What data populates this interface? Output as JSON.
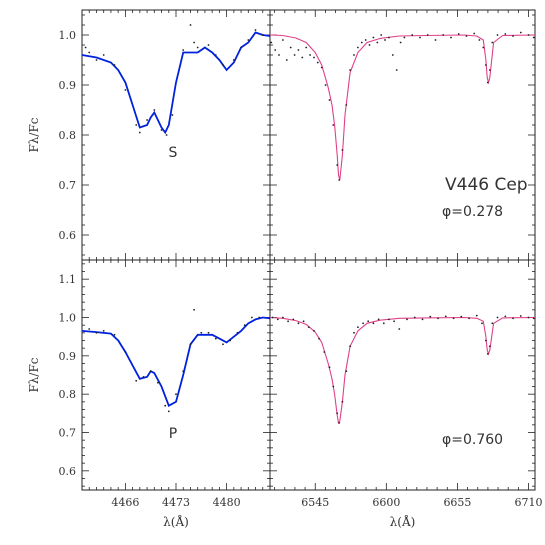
{
  "chart_data": [
    {
      "id": "top-left",
      "type": "line",
      "xlim": [
        4460,
        4486
      ],
      "ylim": [
        0.55,
        1.05
      ],
      "yticks": [
        0.6,
        0.7,
        0.8,
        0.9,
        1.0
      ],
      "xticks": [
        4466,
        4473,
        4480
      ],
      "ylabel": "Fλ/Fc",
      "annotation": "S",
      "series": [
        {
          "style": "line",
          "color": "#0022dd",
          "x": [
            4460,
            4462,
            4464,
            4465,
            4466,
            4467,
            4468,
            4469,
            4469.5,
            4470,
            4471,
            4471.5,
            4472,
            4473,
            4474,
            4476,
            4477,
            4478,
            4479,
            4480,
            4481,
            4482,
            4483,
            4484,
            4485,
            4486
          ],
          "y": [
            0.96,
            0.955,
            0.945,
            0.93,
            0.905,
            0.86,
            0.815,
            0.82,
            0.835,
            0.845,
            0.815,
            0.805,
            0.82,
            0.905,
            0.965,
            0.965,
            0.975,
            0.965,
            0.95,
            0.93,
            0.945,
            0.975,
            0.985,
            1.005,
            1.0,
            0.998
          ]
        },
        {
          "style": "points",
          "color": "#222222",
          "x": [
            4460.5,
            4461,
            4462,
            4463,
            4464.5,
            4466,
            4467.5,
            4468,
            4469,
            4470,
            4471,
            4471.7,
            4472.5,
            4474,
            4475,
            4475.5,
            4476,
            4477.5,
            4478.5,
            4479.5,
            4481,
            4482,
            4483,
            4484,
            4485
          ],
          "y": [
            0.975,
            0.965,
            0.95,
            0.96,
            0.94,
            0.89,
            0.82,
            0.805,
            0.83,
            0.85,
            0.81,
            0.8,
            0.84,
            0.97,
            1.02,
            0.985,
            0.975,
            0.98,
            0.96,
            0.94,
            0.95,
            0.975,
            0.99,
            1.01,
            1.0
          ]
        }
      ]
    },
    {
      "id": "top-right",
      "type": "line",
      "xlim": [
        6510,
        6715
      ],
      "ylim": [
        0.55,
        1.05
      ],
      "xticks": [
        6545,
        6600,
        6655,
        6710
      ],
      "annotation": "V446 Cep",
      "phase": "φ=0.278",
      "series": [
        {
          "style": "line",
          "color": "#e0408a",
          "x": [
            6510,
            6520,
            6530,
            6538,
            6545,
            6550,
            6555,
            6558,
            6560,
            6562,
            6563,
            6564,
            6566,
            6568,
            6572,
            6578,
            6585,
            6595,
            6610,
            6630,
            6660,
            6670,
            6675,
            6677,
            6678,
            6679,
            6680,
            6683,
            6690,
            6715
          ],
          "y": [
            1.0,
            0.999,
            0.994,
            0.985,
            0.965,
            0.94,
            0.895,
            0.86,
            0.82,
            0.76,
            0.72,
            0.71,
            0.76,
            0.84,
            0.925,
            0.965,
            0.985,
            0.993,
            0.998,
            0.999,
            1.0,
            0.998,
            0.99,
            0.95,
            0.915,
            0.905,
            0.915,
            0.985,
            0.999,
            1.0
          ]
        },
        {
          "style": "points",
          "color": "#222222",
          "x": [
            6511,
            6514,
            6517,
            6520,
            6523,
            6526,
            6529,
            6532,
            6535,
            6538,
            6541,
            6544,
            6547,
            6550,
            6553,
            6556,
            6559,
            6562,
            6563.5,
            6566,
            6569,
            6572,
            6575,
            6578,
            6581,
            6584,
            6587,
            6590,
            6593,
            6596,
            6599,
            6602,
            6605,
            6608,
            6611,
            6614,
            6620,
            6626,
            6632,
            6638,
            6644,
            6650,
            6656,
            6662,
            6668,
            6672,
            6675,
            6677,
            6678.5,
            6680,
            6682,
            6686,
            6692,
            6698,
            6704,
            6710,
            6714
          ],
          "y": [
            0.985,
            0.97,
            0.96,
            0.99,
            0.95,
            0.975,
            0.96,
            0.97,
            0.955,
            0.975,
            0.96,
            0.955,
            0.945,
            0.935,
            0.9,
            0.87,
            0.82,
            0.74,
            0.71,
            0.77,
            0.86,
            0.93,
            0.96,
            0.975,
            0.985,
            0.99,
            0.98,
            0.995,
            0.985,
            1.0,
            0.99,
            0.995,
            0.96,
            0.93,
            0.985,
            0.995,
            1.0,
            0.995,
            1.0,
            0.99,
            1.0,
            0.995,
            1.002,
            0.998,
            1.003,
            0.99,
            0.975,
            0.94,
            0.905,
            0.93,
            0.985,
            1.0,
            1.002,
            0.998,
            1.005,
            1.0,
            0.995
          ]
        }
      ]
    },
    {
      "id": "bottom-left",
      "type": "line",
      "xlim": [
        4460,
        4486
      ],
      "ylim": [
        0.55,
        1.15
      ],
      "yticks": [
        0.6,
        0.7,
        0.8,
        0.9,
        1.0,
        1.1
      ],
      "xticks": [
        4466,
        4473,
        4480
      ],
      "xticklabels": [
        "4466",
        "4473",
        "4480"
      ],
      "xlabel": "λ(Å)",
      "ylabel": "Fλ/Fc",
      "annotation": "P",
      "series": [
        {
          "style": "line",
          "color": "#0022dd",
          "x": [
            4460,
            4462,
            4464,
            4465,
            4466,
            4467,
            4468,
            4469,
            4469.5,
            4470,
            4471,
            4472,
            4473,
            4474,
            4475,
            4476,
            4477,
            4478,
            4479,
            4480,
            4481,
            4482,
            4483,
            4484,
            4485,
            4486
          ],
          "y": [
            0.965,
            0.962,
            0.958,
            0.94,
            0.91,
            0.875,
            0.84,
            0.845,
            0.86,
            0.855,
            0.82,
            0.77,
            0.78,
            0.85,
            0.93,
            0.955,
            0.955,
            0.955,
            0.945,
            0.935,
            0.95,
            0.965,
            0.985,
            0.995,
            1.0,
            0.998
          ]
        },
        {
          "style": "points",
          "color": "#222222",
          "x": [
            4461,
            4462,
            4463,
            4464.5,
            4466,
            4467.5,
            4468.5,
            4469.5,
            4470.5,
            4471.5,
            4472,
            4473,
            4474,
            4475,
            4475.5,
            4476.5,
            4477.5,
            4478.5,
            4479.5,
            4480.5,
            4481.5,
            4482.5,
            4483.5,
            4484.5
          ],
          "y": [
            0.97,
            0.96,
            0.965,
            0.955,
            0.91,
            0.835,
            0.845,
            0.86,
            0.83,
            0.77,
            0.755,
            0.8,
            0.86,
            0.93,
            1.02,
            0.96,
            0.96,
            0.945,
            0.93,
            0.94,
            0.96,
            0.98,
            1.0,
            1.0
          ]
        }
      ]
    },
    {
      "id": "bottom-right",
      "type": "line",
      "xlim": [
        6510,
        6715
      ],
      "ylim": [
        0.55,
        1.15
      ],
      "xticks": [
        6545,
        6600,
        6655,
        6710
      ],
      "xticklabels": [
        "6545",
        "6600",
        "6655",
        "6710"
      ],
      "xlabel": "λ(Å)",
      "phase": "φ=0.760",
      "series": [
        {
          "style": "line",
          "color": "#e0408a",
          "x": [
            6510,
            6520,
            6530,
            6538,
            6545,
            6550,
            6555,
            6558,
            6560,
            6562,
            6563,
            6564,
            6566,
            6568,
            6572,
            6578,
            6585,
            6595,
            6610,
            6630,
            6660,
            6670,
            6675,
            6677,
            6678,
            6679,
            6680,
            6683,
            6690,
            6715
          ],
          "y": [
            1.0,
            0.998,
            0.992,
            0.982,
            0.962,
            0.935,
            0.88,
            0.84,
            0.8,
            0.745,
            0.725,
            0.73,
            0.78,
            0.85,
            0.925,
            0.965,
            0.985,
            0.993,
            0.998,
            0.999,
            1.0,
            0.998,
            0.99,
            0.95,
            0.915,
            0.905,
            0.915,
            0.985,
            0.999,
            1.0
          ]
        },
        {
          "style": "points",
          "color": "#222222",
          "x": [
            6512,
            6516,
            6520,
            6524,
            6528,
            6532,
            6536,
            6540,
            6544,
            6548,
            6552,
            6556,
            6559,
            6562,
            6563.5,
            6566,
            6569,
            6572,
            6575,
            6578,
            6582,
            6586,
            6590,
            6594,
            6598,
            6602,
            6606,
            6610,
            6616,
            6622,
            6628,
            6634,
            6640,
            6646,
            6652,
            6658,
            6664,
            6670,
            6674,
            6677,
            6678.5,
            6680,
            6682,
            6686,
            6692,
            6698,
            6704,
            6710,
            6714
          ],
          "y": [
            1.0,
            0.995,
            1.0,
            0.99,
            0.995,
            0.985,
            0.99,
            0.975,
            0.965,
            0.945,
            0.91,
            0.87,
            0.82,
            0.75,
            0.725,
            0.78,
            0.86,
            0.925,
            0.96,
            0.975,
            0.985,
            0.99,
            0.985,
            0.995,
            0.985,
            0.995,
            0.99,
            0.97,
            0.995,
            1.0,
            0.995,
            1.002,
            0.998,
            1.003,
            0.998,
            1.002,
            0.998,
            1.005,
            0.985,
            0.94,
            0.905,
            0.925,
            0.985,
            1.0,
            1.003,
            0.998,
            1.004,
            1.0,
            0.998
          ]
        }
      ]
    }
  ]
}
